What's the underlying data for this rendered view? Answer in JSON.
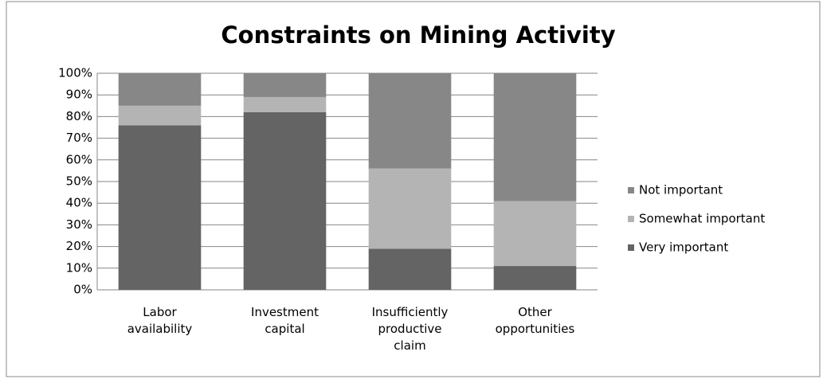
{
  "chart_data": {
    "type": "stacked_bar",
    "title": "Constraints on Mining Activity",
    "categories": [
      "Labor availability",
      "Investment capital",
      "Insufficiently productive claim",
      "Other opportunities"
    ],
    "series": [
      {
        "name": "Very important",
        "color": "#646464",
        "values": [
          76,
          82,
          19,
          11
        ]
      },
      {
        "name": "Somewhat important",
        "color": "#b4b4b4",
        "values": [
          9,
          7,
          37,
          30
        ]
      },
      {
        "name": "Not important",
        "color": "#878787",
        "values": [
          15,
          11,
          44,
          59
        ]
      }
    ],
    "ylim": [
      0,
      100
    ],
    "yticks": [
      {
        "value": 0,
        "label": "0%"
      },
      {
        "value": 10,
        "label": "10%"
      },
      {
        "value": 20,
        "label": "20%"
      },
      {
        "value": 30,
        "label": "30%"
      },
      {
        "value": 40,
        "label": "40%"
      },
      {
        "value": 50,
        "label": "50%"
      },
      {
        "value": 60,
        "label": "60%"
      },
      {
        "value": 70,
        "label": "70%"
      },
      {
        "value": 80,
        "label": "80%"
      },
      {
        "value": 90,
        "label": "90%"
      },
      {
        "value": 100,
        "label": "100%"
      }
    ],
    "grid": true,
    "legend": "right"
  }
}
